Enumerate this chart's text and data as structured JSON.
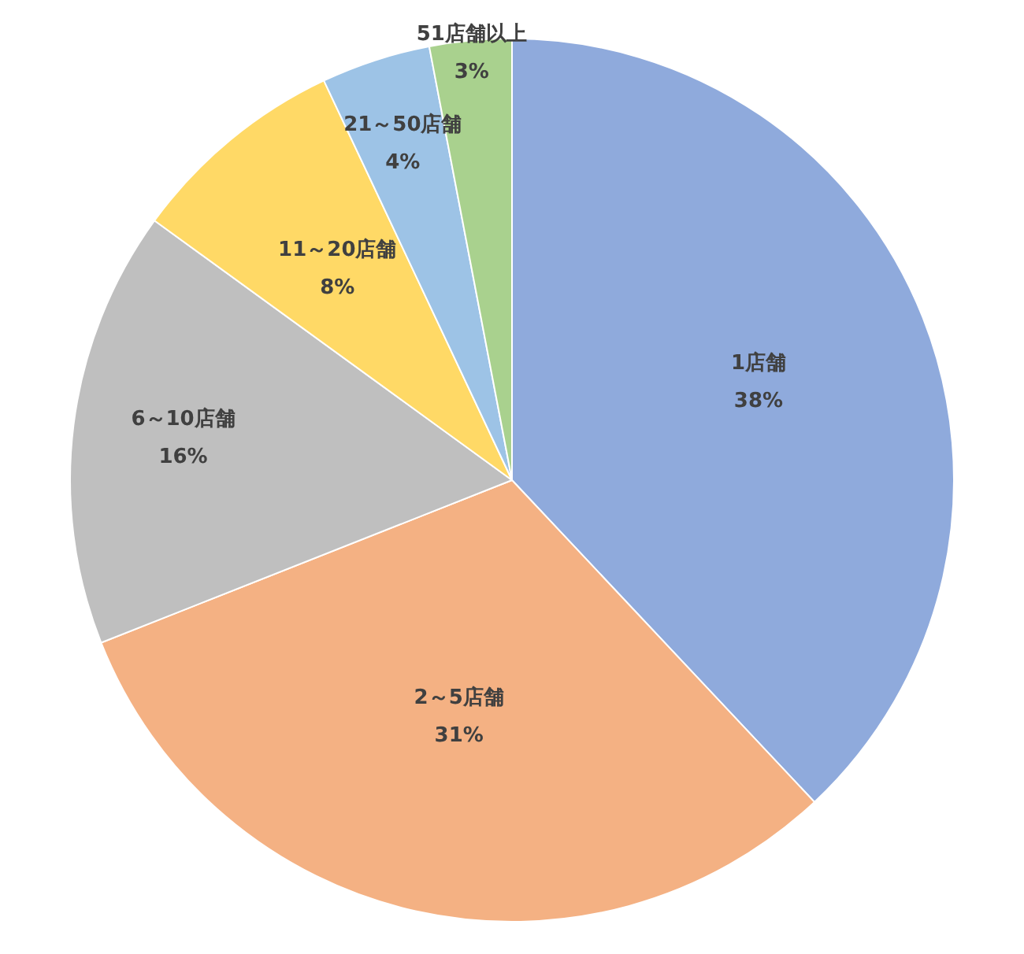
{
  "chart_data": {
    "type": "pie",
    "categories": [
      "1店舗",
      "2～5店舗",
      "6～10店舗",
      "11～20店舗",
      "21～50店舗",
      "51店舗以上"
    ],
    "values": [
      38,
      31,
      16,
      8,
      4,
      3
    ],
    "value_labels": [
      "38%",
      "31%",
      "16%",
      "8%",
      "4%",
      "3%"
    ],
    "colors": [
      "#8faadc",
      "#f4b183",
      "#bfbfbf",
      "#ffd966",
      "#9dc3e6",
      "#a9d18e"
    ],
    "legend": false
  }
}
